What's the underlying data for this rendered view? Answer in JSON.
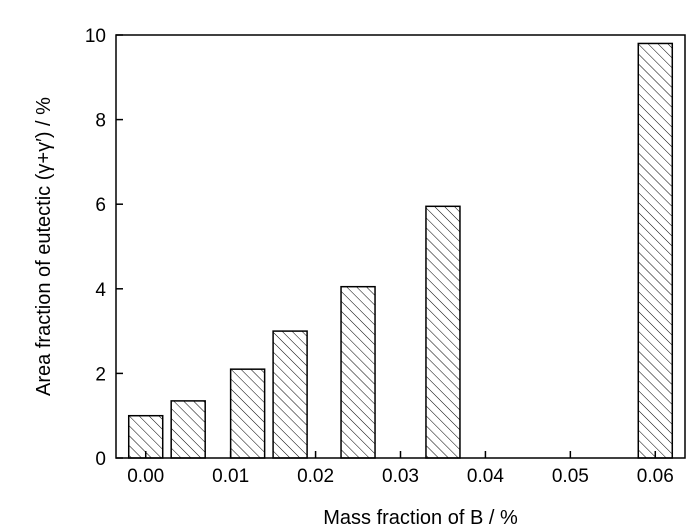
{
  "chart_data": {
    "type": "bar",
    "x": [
      0.0,
      0.005,
      0.012,
      0.017,
      0.025,
      0.035,
      0.06
    ],
    "values": [
      1.0,
      1.35,
      2.1,
      3.0,
      4.05,
      5.95,
      9.8
    ],
    "xlabel": "Mass fraction of B / %",
    "ylabel": "Area fraction of eutectic (γ+γ′) / %",
    "xlim": [
      -0.0035,
      0.0635
    ],
    "ylim": [
      0,
      10
    ],
    "xticks": [
      "0.00",
      "0.01",
      "0.02",
      "0.03",
      "0.04",
      "0.05",
      "0.06"
    ],
    "yticks": [
      "0",
      "2",
      "4",
      "6",
      "8",
      "10"
    ],
    "bar_fill": "diagonal-hatch",
    "grid": false,
    "legend": "none"
  }
}
